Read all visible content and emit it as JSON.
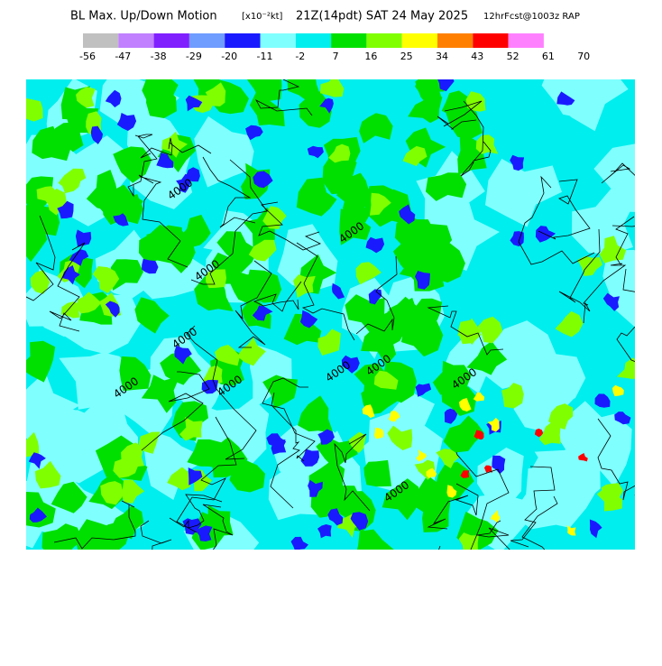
{
  "header": {
    "title": "BL Max. Up/Down Motion",
    "units": "[x10⁻²kt]",
    "valid": "21Z(14pdt) SAT 24 May 2025",
    "forecast": "12hrFcst@1003z RAP"
  },
  "legend": {
    "colors": [
      "#c0c0c0",
      "#c080ff",
      "#8020ff",
      "#6f9cff",
      "#1a1aff",
      "#80ffff",
      "#00eeee",
      "#00e000",
      "#80ff00",
      "#ffff00",
      "#ff8000",
      "#ff0000",
      "#ff80ff"
    ],
    "labels": [
      "-56",
      "-47",
      "-38",
      "-29",
      "-20",
      "-11",
      "-2",
      "7",
      "16",
      "25",
      "34",
      "43",
      "52",
      "61",
      "70"
    ]
  },
  "map": {
    "contour_labels": [
      "4000",
      "4000",
      "4000",
      "4000",
      "4000",
      "4000",
      "4000",
      "4000",
      "4000",
      "4000"
    ]
  }
}
